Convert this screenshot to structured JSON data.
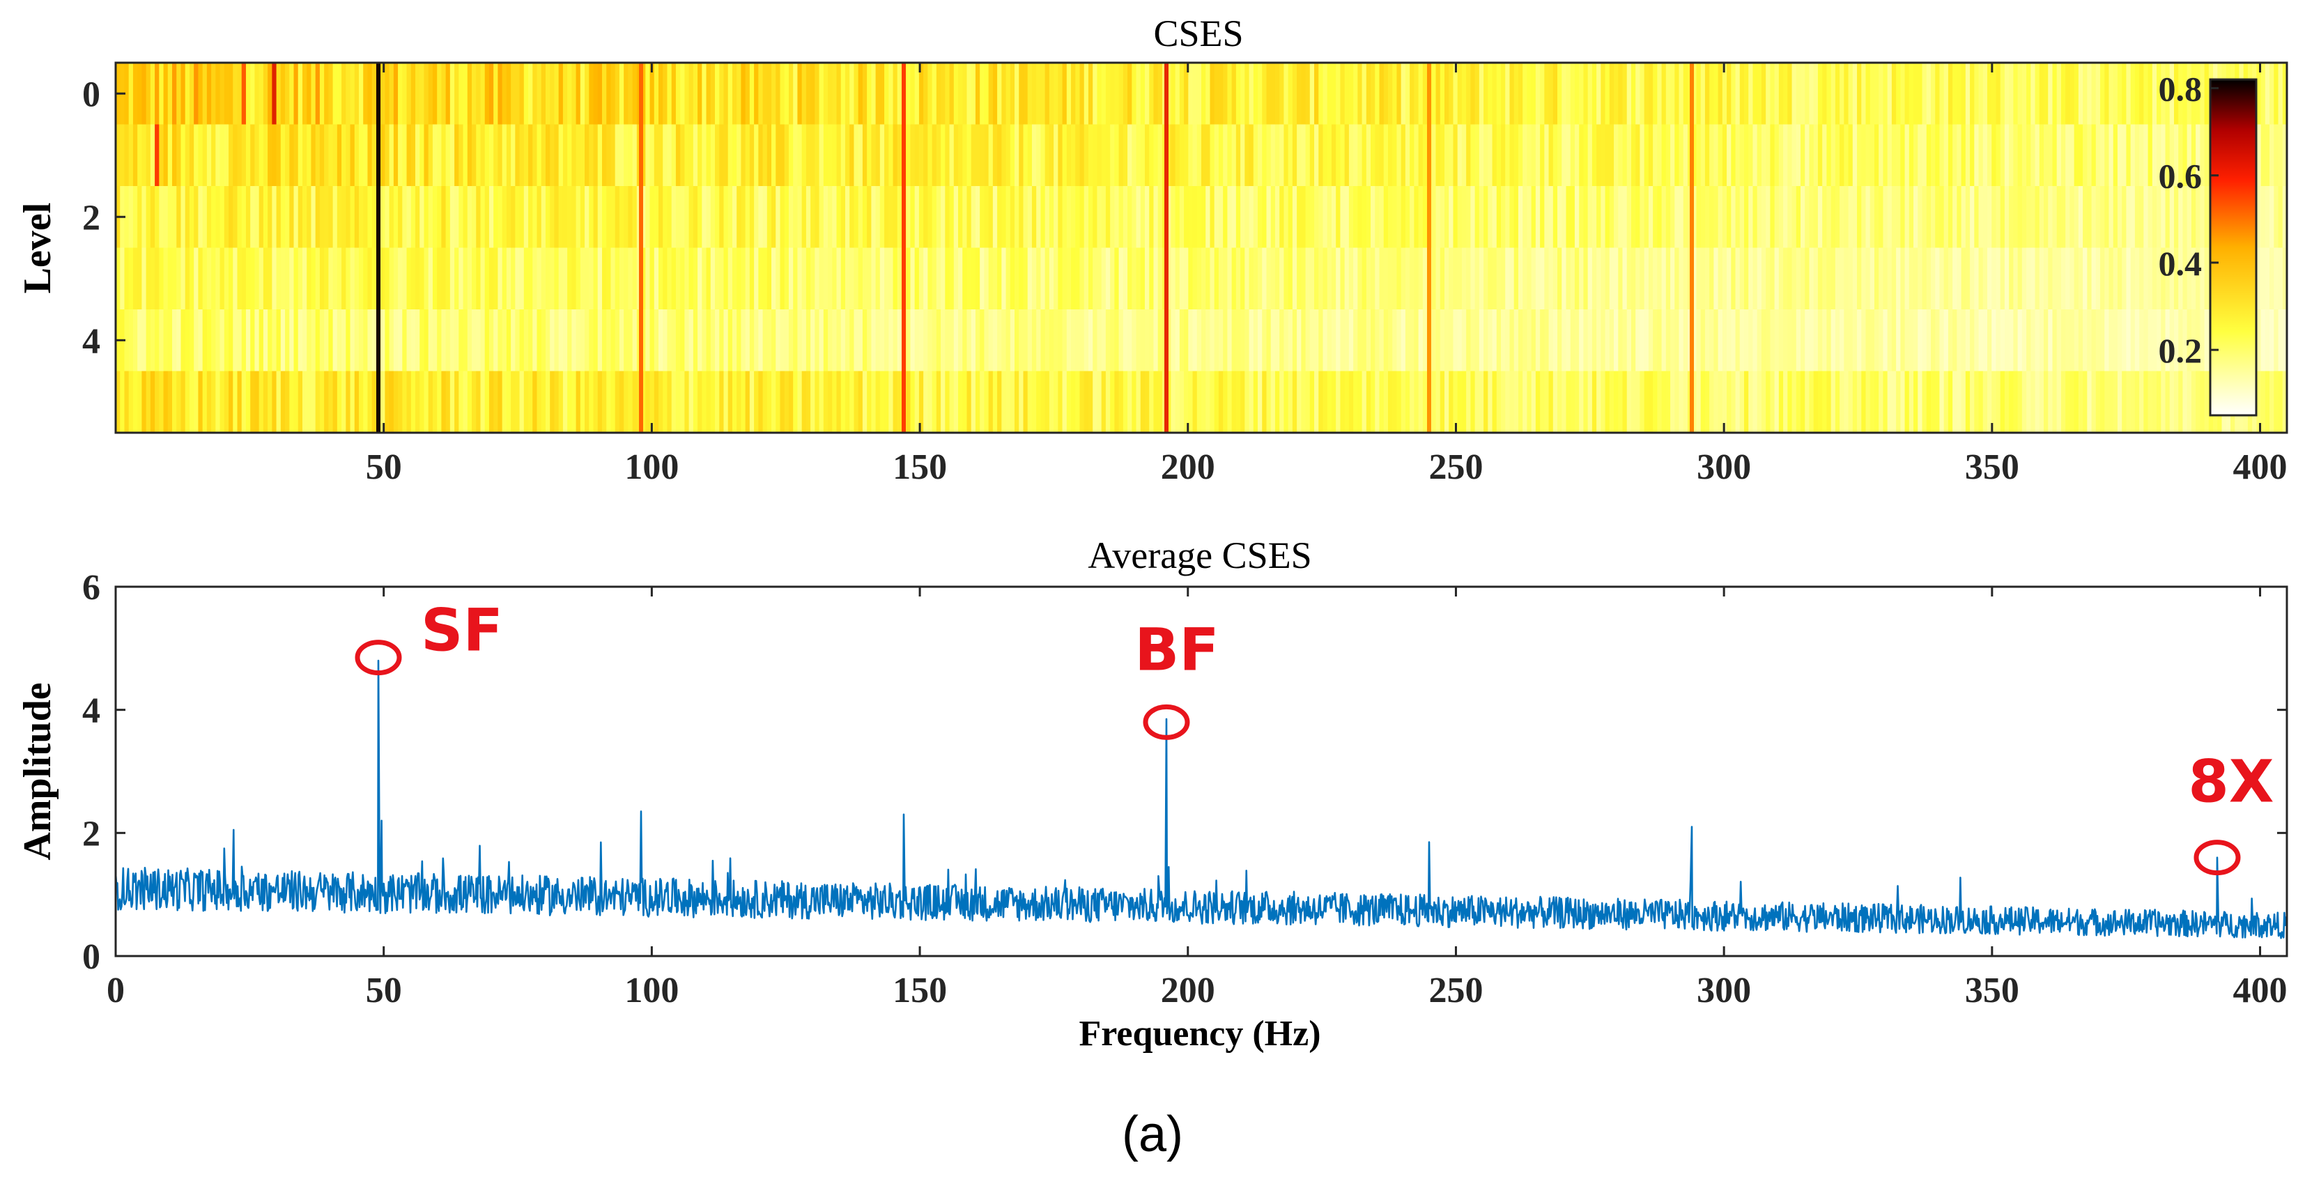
{
  "chart_data": [
    {
      "type": "heatmap",
      "title": "CSES",
      "xlabel": "",
      "ylabel": "Level",
      "xlim": [
        0,
        405
      ],
      "ylim": [
        -0.5,
        5.5
      ],
      "y_reversed": true,
      "xticks": [
        50,
        100,
        150,
        200,
        250,
        300,
        350,
        400
      ],
      "yticks": [
        0,
        2,
        4
      ],
      "rows": 6,
      "colorbar": {
        "ticks": [
          0.2,
          0.4,
          0.6,
          0.8
        ],
        "range": [
          0.05,
          0.82
        ],
        "colormap": "hot-reversed"
      },
      "peak_lines": [
        {
          "freq": 49,
          "value": 0.8
        },
        {
          "freq": 98,
          "value": 0.45
        },
        {
          "freq": 147,
          "value": 0.5
        },
        {
          "freq": 196,
          "value": 0.55
        },
        {
          "freq": 245,
          "value": 0.4
        },
        {
          "freq": 294,
          "value": 0.42
        }
      ],
      "background_level_by_row": [
        0.3,
        0.26,
        0.22,
        0.19,
        0.17,
        0.25
      ]
    },
    {
      "type": "line",
      "title": "Average CSES",
      "xlabel": "Frequency (Hz)",
      "ylabel": "Amplitude",
      "xlim": [
        0,
        405
      ],
      "ylim": [
        0,
        6
      ],
      "xticks": [
        0,
        50,
        100,
        150,
        200,
        250,
        300,
        350,
        400
      ],
      "yticks": [
        0,
        2,
        4,
        6
      ],
      "series": [
        {
          "name": "Average CSES",
          "color": "#0072bd",
          "noise_floor": {
            "start": 1.1,
            "end": 0.5,
            "spread": 0.35
          },
          "peaks": [
            {
              "x": 49,
              "y": 4.8
            },
            {
              "x": 49.6,
              "y": 2.2
            },
            {
              "x": 22,
              "y": 2.05
            },
            {
              "x": 98,
              "y": 2.35
            },
            {
              "x": 147,
              "y": 2.3
            },
            {
              "x": 196,
              "y": 3.85
            },
            {
              "x": 194.5,
              "y": 1.3
            },
            {
              "x": 245,
              "y": 1.85
            },
            {
              "x": 294,
              "y": 2.1
            },
            {
              "x": 392,
              "y": 1.6
            }
          ]
        }
      ],
      "annotations": [
        {
          "text": "SF",
          "x": 49,
          "y": 4.85
        },
        {
          "text": "BF",
          "x": 196,
          "y": 3.8
        },
        {
          "text": "8X",
          "x": 392,
          "y": 1.6
        }
      ],
      "annotation_color": "#e8141c"
    }
  ],
  "caption": "(a)"
}
